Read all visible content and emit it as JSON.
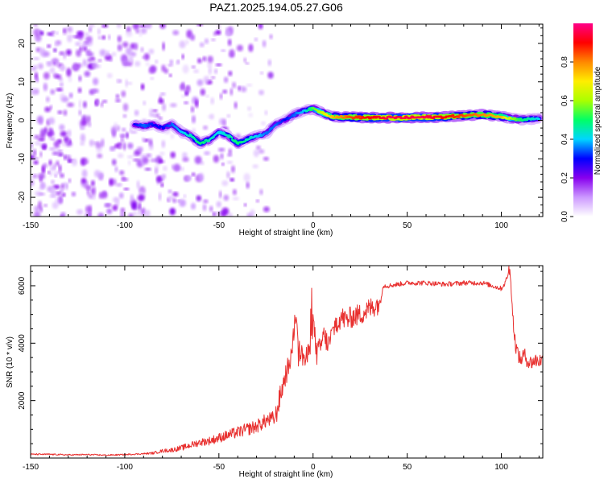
{
  "figure": {
    "title": "PAZ1.2025.194.05.27.G06"
  },
  "chart_data": [
    {
      "type": "heatmap",
      "xlabel": "Height of straight line (km)",
      "ylabel": "Frequency (Hz)",
      "xlim": [
        -150,
        122
      ],
      "ylim": [
        -25,
        25
      ],
      "xticks": [
        -150,
        -100,
        -50,
        0,
        50,
        100
      ],
      "yticks": [
        -20,
        -10,
        0,
        10,
        20
      ],
      "grid": false,
      "colorbar": {
        "label": "Normalized spectral amplitude",
        "range": [
          0,
          1
        ],
        "ticks": [
          0.0,
          0.2,
          0.4,
          0.6,
          0.8
        ],
        "tick_labels": [
          "0.0",
          "0.2",
          "0.4",
          "0.6",
          "0.8"
        ],
        "colormap": [
          "#ffffff",
          "#cc99ff",
          "#8800ee",
          "#0000ff",
          "#00d5ff",
          "#00ff66",
          "#aaff00",
          "#ffee00",
          "#ff8800",
          "#ff0000",
          "#ff0088"
        ]
      },
      "ridge": {
        "description_values": "dominant frequency (Hz) vs height (km)",
        "x": [
          -95,
          -90,
          -85,
          -80,
          -75,
          -70,
          -65,
          -60,
          -55,
          -50,
          -45,
          -40,
          -35,
          -30,
          -25,
          -20,
          -15,
          -10,
          -5,
          0,
          5,
          10,
          20,
          30,
          40,
          50,
          60,
          70,
          80,
          90,
          100,
          105,
          110,
          115,
          120
        ],
        "y": [
          -1,
          -1.5,
          -1,
          -2,
          -1,
          -3,
          -4,
          -6,
          -5,
          -3,
          -4,
          -6,
          -5,
          -4,
          -3.5,
          -1,
          0,
          1.5,
          2.5,
          3,
          2,
          1,
          0.8,
          0.7,
          0.7,
          0.7,
          0.8,
          0.9,
          1.2,
          1.5,
          1.0,
          0.5,
          0.2,
          0.3,
          0.5
        ],
        "amplitude": [
          0.3,
          0.35,
          0.3,
          0.3,
          0.35,
          0.4,
          0.45,
          0.5,
          0.45,
          0.4,
          0.45,
          0.5,
          0.45,
          0.4,
          0.35,
          0.35,
          0.3,
          0.35,
          0.4,
          0.55,
          0.65,
          0.75,
          0.85,
          0.9,
          0.95,
          0.95,
          0.95,
          0.9,
          0.85,
          0.8,
          0.75,
          0.6,
          0.5,
          0.45,
          0.4
        ]
      },
      "noise_region_x": [
        -150,
        -22
      ]
    },
    {
      "type": "line",
      "xlabel": "Height of straight line (km)",
      "ylabel": "SNR (10 * v/v)",
      "xlim": [
        -150,
        122
      ],
      "ylim": [
        0,
        6700
      ],
      "xticks": [
        -150,
        -100,
        -50,
        0,
        50,
        100
      ],
      "yticks": [
        2000,
        4000,
        6000
      ],
      "grid": false,
      "series": [
        {
          "color": "#e8302f",
          "x": [
            -150,
            -140,
            -130,
            -120,
            -110,
            -100,
            -90,
            -85,
            -80,
            -75,
            -70,
            -65,
            -60,
            -55,
            -50,
            -45,
            -40,
            -35,
            -30,
            -25,
            -22,
            -20,
            -18,
            -15,
            -13,
            -11,
            -10,
            -9,
            -8,
            -6,
            -4,
            -2,
            0,
            2,
            4,
            6,
            8,
            10,
            12,
            15,
            18,
            20,
            25,
            30,
            35,
            36,
            37,
            40,
            50,
            60,
            70,
            80,
            90,
            95,
            100,
            102,
            104,
            105,
            106,
            107,
            108,
            110,
            112,
            115,
            118,
            122
          ],
          "y": [
            130,
            130,
            110,
            120,
            100,
            120,
            150,
            170,
            250,
            280,
            350,
            450,
            550,
            600,
            700,
            800,
            900,
            1000,
            1100,
            1300,
            1350,
            1400,
            2000,
            2800,
            3200,
            3800,
            4500,
            5200,
            3800,
            3600,
            3400,
            3700,
            4800,
            3600,
            3900,
            4300,
            3900,
            4300,
            4700,
            4900,
            4800,
            4900,
            5000,
            5200,
            5400,
            5450,
            6000,
            6000,
            6100,
            6100,
            6050,
            6100,
            6100,
            6000,
            5900,
            6100,
            6500,
            6350,
            5000,
            4200,
            3800,
            3400,
            3600,
            3300,
            3400,
            3400
          ]
        }
      ]
    }
  ]
}
